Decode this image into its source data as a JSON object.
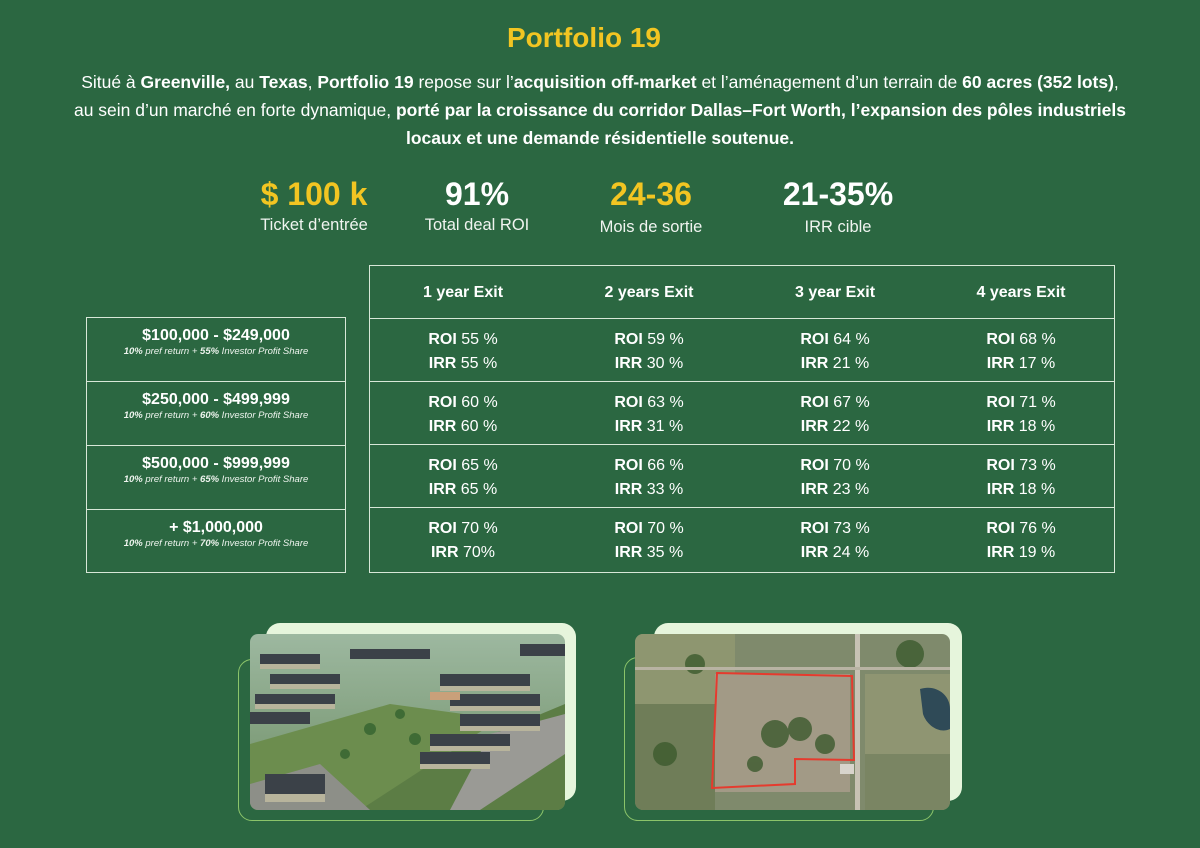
{
  "title": "Portfolio 19",
  "intro": {
    "p1": "Situé à ",
    "b1": "Greenville,",
    "p2": " au ",
    "b2": "Texas",
    "p3": ", ",
    "b3": "Portfolio 19",
    "p4": " repose sur l’",
    "b4": "acquisition off-market",
    "p5": " et l’aménagement d’un terrain de ",
    "b5": "60 acres (352 lots)",
    "p6": ", au sein d’un marché en forte dynamique, ",
    "b6": "porté par la croissance du corridor Dallas–Fort Worth, l’expansion des pôles industriels locaux et une demande résidentielle soutenue."
  },
  "kpis": [
    {
      "value": "$ 100 k",
      "label": "Ticket d’entrée"
    },
    {
      "value": "91%",
      "label": "Total deal ROI"
    },
    {
      "value": "24-36",
      "label": "Mois  de sortie"
    },
    {
      "value": "21-35%",
      "label": "IRR cible"
    }
  ],
  "colors": {
    "accent": "#f2c522",
    "background": "#2b6741",
    "border": "#d8e8d8"
  },
  "tiers": [
    {
      "range": "$100,000 - $249,000",
      "pref": "10%",
      "mid": " pref return + ",
      "share": "55%",
      "tail": " Investor Profit Share"
    },
    {
      "range": "$250,000 - $499,999",
      "pref": "10%",
      "mid": " pref return + ",
      "share": "60%",
      "tail": " Investor Profit Share"
    },
    {
      "range": "$500,000 - $999,999",
      "pref": "10%",
      "mid": " pref return + ",
      "share": "65%",
      "tail": " Investor Profit Share"
    },
    {
      "range": "+ $1,000,000",
      "pref": "10%",
      "mid": " pref return + ",
      "share": "70%",
      "tail": " Investor Profit Share"
    }
  ],
  "table": {
    "headers": [
      "1 year Exit",
      "2 years Exit",
      "3 year Exit",
      "4 years Exit"
    ],
    "roi_label": "ROI",
    "irr_label": "IRR",
    "rows": [
      [
        {
          "roi": " 55 %",
          "irr": " 55 %"
        },
        {
          "roi": " 59 %",
          "irr": " 30 %"
        },
        {
          "roi": " 64 %",
          "irr": " 21 %"
        },
        {
          "roi": " 68 %",
          "irr": " 17 %"
        }
      ],
      [
        {
          "roi": " 60 %",
          "irr": " 60 %"
        },
        {
          "roi": " 63 %",
          "irr": " 31 %"
        },
        {
          "roi": " 67 %",
          "irr": " 22 %"
        },
        {
          "roi": " 71 %",
          "irr": " 18 %"
        }
      ],
      [
        {
          "roi": " 65 %",
          "irr": " 65 %"
        },
        {
          "roi": " 66 %",
          "irr": " 33 %"
        },
        {
          "roi": " 70 %",
          "irr": " 23 %"
        },
        {
          "roi": " 73 %",
          "irr": " 18 %"
        }
      ],
      [
        {
          "roi": " 70 %",
          "irr": " 70%"
        },
        {
          "roi": " 70 %",
          "irr": " 35 %"
        },
        {
          "roi": " 73 %",
          "irr": " 24 %"
        },
        {
          "roi": " 76 %",
          "irr": " 19 %"
        }
      ]
    ]
  },
  "images": [
    {
      "icon": "subdivision-rendering-image"
    },
    {
      "icon": "aerial-land-parcel-image"
    }
  ]
}
